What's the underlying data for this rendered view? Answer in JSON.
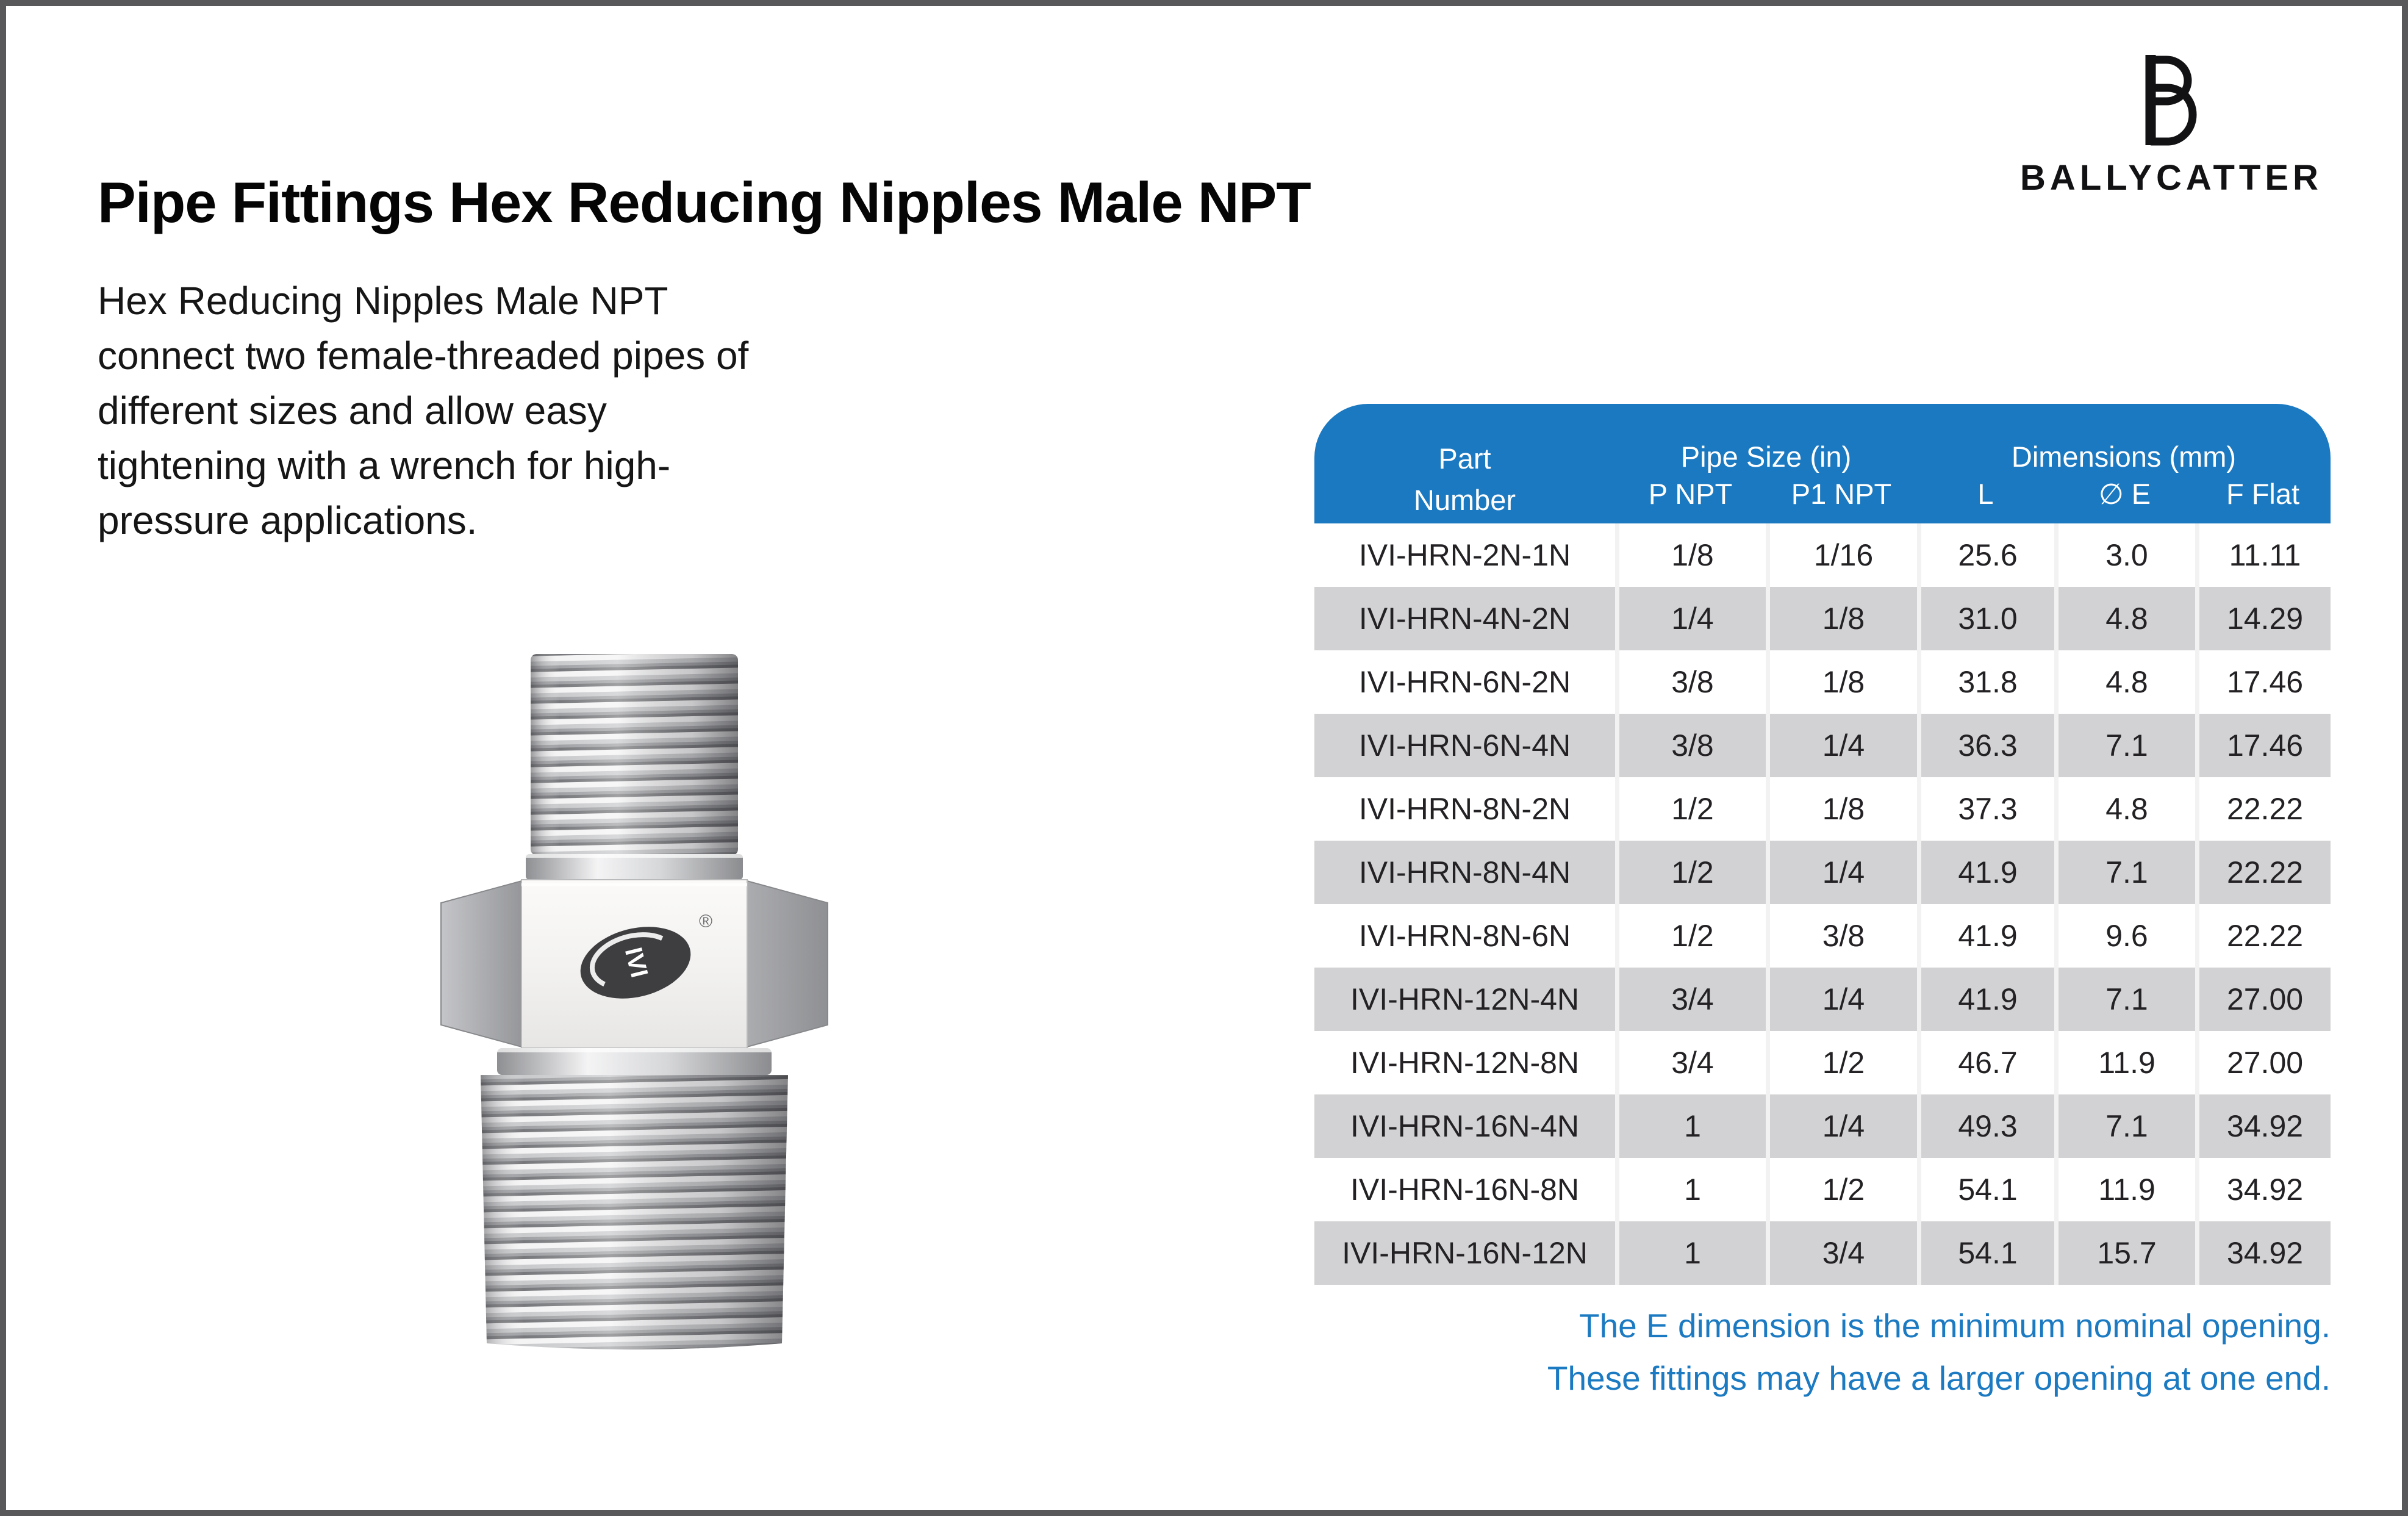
{
  "page": {
    "title": "Pipe Fittings Hex Reducing Nipples Male NPT",
    "description_lines": [
      "Hex Reducing Nipples Male NPT",
      "connect two female-threaded pipes of",
      "different sizes and allow easy",
      "tightening with a wrench for high-",
      "pressure applications."
    ]
  },
  "brand": {
    "name": "BALLYCATTER"
  },
  "product_image": {
    "oval_logo_text": "IVI",
    "registered_mark": "®"
  },
  "table": {
    "header": {
      "part_number_lines": [
        "Part",
        "Number"
      ],
      "group_pipe_size": "Pipe Size (in)",
      "group_dimensions": "Dimensions (mm)",
      "sub": [
        "P NPT",
        "P1 NPT",
        "L",
        "∅ E",
        "F Flat"
      ]
    },
    "rows": [
      [
        "IVI-HRN-2N-1N",
        "1/8",
        "1/16",
        "25.6",
        "3.0",
        "11.11"
      ],
      [
        "IVI-HRN-4N-2N",
        "1/4",
        "1/8",
        "31.0",
        "4.8",
        "14.29"
      ],
      [
        "IVI-HRN-6N-2N",
        "3/8",
        "1/8",
        "31.8",
        "4.8",
        "17.46"
      ],
      [
        "IVI-HRN-6N-4N",
        "3/8",
        "1/4",
        "36.3",
        "7.1",
        "17.46"
      ],
      [
        "IVI-HRN-8N-2N",
        "1/2",
        "1/8",
        "37.3",
        "4.8",
        "22.22"
      ],
      [
        "IVI-HRN-8N-4N",
        "1/2",
        "1/4",
        "41.9",
        "7.1",
        "22.22"
      ],
      [
        "IVI-HRN-8N-6N",
        "1/2",
        "3/8",
        "41.9",
        "9.6",
        "22.22"
      ],
      [
        "IVI-HRN-12N-4N",
        "3/4",
        "1/4",
        "41.9",
        "7.1",
        "27.00"
      ],
      [
        "IVI-HRN-12N-8N",
        "3/4",
        "1/2",
        "46.7",
        "11.9",
        "27.00"
      ],
      [
        "IVI-HRN-16N-4N",
        "1",
        "1/4",
        "49.3",
        "7.1",
        "34.92"
      ],
      [
        "IVI-HRN-16N-8N",
        "1",
        "1/2",
        "54.1",
        "11.9",
        "34.92"
      ],
      [
        "IVI-HRN-16N-12N",
        "1",
        "3/4",
        "54.1",
        "15.7",
        "34.92"
      ]
    ]
  },
  "footnote_lines": [
    "The E dimension is the minimum nominal opening.",
    "These fittings may have a larger opening at one end."
  ],
  "colors": {
    "header_blue": "#1B79C1",
    "row_alt_gray": "#D2D2D4",
    "footnote_blue": "#1B7AC1",
    "page_border": "#58585A"
  }
}
